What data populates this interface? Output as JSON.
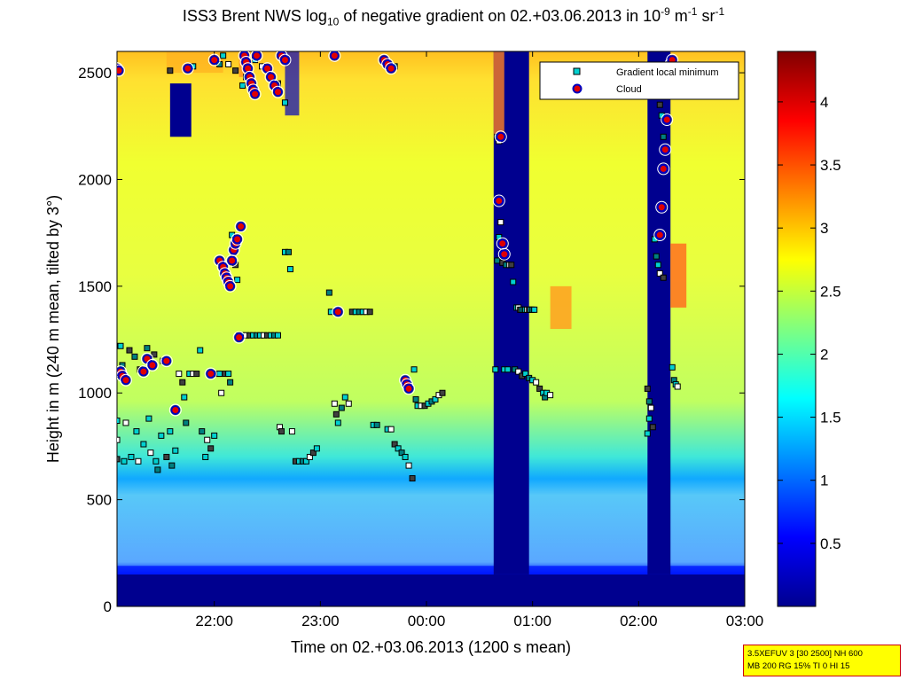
{
  "title": {
    "pre": "ISS3 Brent NWS log",
    "sub": "10",
    "mid": " of negative gradient on 02.+03.06.2013 in 10",
    "sup1": "-9",
    "mid2": " m",
    "sup2": "-1",
    "mid3": " sr",
    "sup3": "-1"
  },
  "info_box": {
    "line1": "3.5XEFUV 3 [30 2500] NH 600",
    "line2": "MB 200 RG 15% TI 0 HI 15"
  },
  "colors": {
    "minimum_marker_fill": "#00d0d0",
    "cloud_marker_fill": "#e00000",
    "cloud_marker_edge": "#0000c0"
  },
  "chart_data": {
    "type": "heatmap",
    "colormap": "jet",
    "xlabel": "Time on 02.+03.06.2013 (1200 s mean)",
    "ylabel": "Height in m (240 m mean, tilted by 3°)",
    "xlim": [
      "21:05",
      "03:00"
    ],
    "ylim": [
      0,
      2600
    ],
    "clim": [
      0,
      4.4
    ],
    "x_ticks": [
      "22:00",
      "23:00",
      "00:00",
      "01:00",
      "02:00",
      "03:00"
    ],
    "y_ticks": [
      0,
      500,
      1000,
      1500,
      2000,
      2500
    ],
    "colorbar_ticks": [
      0.5,
      1,
      1.5,
      2,
      2.5,
      3,
      3.5,
      4
    ],
    "legend": {
      "placement": "top-right",
      "entries": [
        "Gradient local minimum",
        "Cloud"
      ]
    },
    "field_description_values": {
      "surface_layer_0_150m": 0.2,
      "layer_150_600m": 1.6,
      "mid_layer_600_1500m": 2.4,
      "upper_layer": 2.5,
      "dropout_bands": [
        {
          "from": "00:38",
          "to": "00:58",
          "value": 0.1
        },
        {
          "from": "02:05",
          "to": "02:18",
          "value": 0.1
        }
      ]
    },
    "series": [
      {
        "name": "Gradient local minimum",
        "points": [
          [
            "21:05",
            870
          ],
          [
            "21:05",
            780
          ],
          [
            "21:05",
            690
          ],
          [
            "21:07",
            1220
          ],
          [
            "21:08",
            1130
          ],
          [
            "21:09",
            680
          ],
          [
            "21:10",
            860
          ],
          [
            "21:12",
            1200
          ],
          [
            "21:13",
            700
          ],
          [
            "21:15",
            1170
          ],
          [
            "21:16",
            820
          ],
          [
            "21:17",
            680
          ],
          [
            "21:18",
            1110
          ],
          [
            "21:20",
            760
          ],
          [
            "21:22",
            1210
          ],
          [
            "21:23",
            880
          ],
          [
            "21:24",
            720
          ],
          [
            "21:26",
            1180
          ],
          [
            "21:27",
            680
          ],
          [
            "21:28",
            640
          ],
          [
            "21:30",
            800
          ],
          [
            "21:31",
            1150
          ],
          [
            "21:33",
            700
          ],
          [
            "21:35",
            820
          ],
          [
            "21:36",
            660
          ],
          [
            "21:38",
            730
          ],
          [
            "21:40",
            1090
          ],
          [
            "21:42",
            1050
          ],
          [
            "21:43",
            980
          ],
          [
            "21:44",
            860
          ],
          [
            "21:46",
            1090
          ],
          [
            "21:48",
            1090
          ],
          [
            "21:50",
            1090
          ],
          [
            "21:52",
            1200
          ],
          [
            "21:53",
            820
          ],
          [
            "21:55",
            700
          ],
          [
            "21:56",
            780
          ],
          [
            "21:58",
            740
          ],
          [
            "22:00",
            800
          ],
          [
            "22:02",
            1090
          ],
          [
            "22:03",
            1090
          ],
          [
            "22:04",
            1000
          ],
          [
            "22:06",
            1090
          ],
          [
            "22:08",
            1090
          ],
          [
            "22:09",
            1050
          ],
          [
            "22:10",
            1740
          ],
          [
            "22:11",
            1660
          ],
          [
            "22:12",
            1600
          ],
          [
            "22:13",
            1530
          ],
          [
            "22:14",
            1270
          ],
          [
            "22:16",
            1270
          ],
          [
            "22:18",
            1270
          ],
          [
            "22:20",
            1270
          ],
          [
            "22:22",
            1270
          ],
          [
            "22:24",
            1270
          ],
          [
            "22:26",
            1270
          ],
          [
            "22:28",
            1270
          ],
          [
            "22:30",
            1270
          ],
          [
            "22:32",
            1270
          ],
          [
            "22:34",
            1270
          ],
          [
            "22:36",
            1270
          ],
          [
            "22:37",
            840
          ],
          [
            "22:38",
            820
          ],
          [
            "22:40",
            1660
          ],
          [
            "22:42",
            1660
          ],
          [
            "22:43",
            1580
          ],
          [
            "22:44",
            820
          ],
          [
            "22:46",
            680
          ],
          [
            "22:48",
            680
          ],
          [
            "22:50",
            680
          ],
          [
            "22:52",
            680
          ],
          [
            "22:54",
            700
          ],
          [
            "22:56",
            720
          ],
          [
            "22:58",
            740
          ],
          [
            "23:05",
            1470
          ],
          [
            "23:06",
            1380
          ],
          [
            "23:08",
            950
          ],
          [
            "23:09",
            900
          ],
          [
            "23:10",
            860
          ],
          [
            "23:12",
            930
          ],
          [
            "23:14",
            980
          ],
          [
            "23:16",
            950
          ],
          [
            "23:18",
            1380
          ],
          [
            "23:20",
            1380
          ],
          [
            "23:22",
            1380
          ],
          [
            "23:24",
            1380
          ],
          [
            "23:26",
            1380
          ],
          [
            "23:28",
            1380
          ],
          [
            "23:30",
            850
          ],
          [
            "23:32",
            850
          ],
          [
            "23:38",
            830
          ],
          [
            "23:40",
            830
          ],
          [
            "23:42",
            760
          ],
          [
            "23:44",
            740
          ],
          [
            "23:46",
            720
          ],
          [
            "23:48",
            700
          ],
          [
            "23:50",
            660
          ],
          [
            "23:52",
            600
          ],
          [
            "23:53",
            1110
          ],
          [
            "23:54",
            970
          ],
          [
            "23:55",
            940
          ],
          [
            "23:57",
            940
          ],
          [
            "23:59",
            940
          ],
          [
            "00:01",
            950
          ],
          [
            "00:03",
            960
          ],
          [
            "00:05",
            970
          ],
          [
            "00:07",
            990
          ],
          [
            "00:09",
            1000
          ],
          [
            "00:39",
            1110
          ],
          [
            "00:40",
            1620
          ],
          [
            "00:41",
            1730
          ],
          [
            "00:42",
            1800
          ],
          [
            "00:43",
            1610
          ],
          [
            "00:44",
            1110
          ],
          [
            "00:45",
            1600
          ],
          [
            "00:46",
            1110
          ],
          [
            "00:47",
            1600
          ],
          [
            "00:48",
            1600
          ],
          [
            "00:49",
            1520
          ],
          [
            "00:50",
            1110
          ],
          [
            "00:51",
            1400
          ],
          [
            "00:52",
            1400
          ],
          [
            "00:53",
            1390
          ],
          [
            "00:54",
            1390
          ],
          [
            "00:55",
            1390
          ],
          [
            "00:56",
            1390
          ],
          [
            "00:57",
            1390
          ],
          [
            "00:58",
            1390
          ],
          [
            "00:59",
            1390
          ],
          [
            "01:00",
            1390
          ],
          [
            "01:01",
            1390
          ],
          [
            "00:52",
            1100
          ],
          [
            "00:54",
            1080
          ],
          [
            "00:56",
            1090
          ],
          [
            "00:58",
            1070
          ],
          [
            "01:00",
            1060
          ],
          [
            "01:02",
            1050
          ],
          [
            "01:04",
            1020
          ],
          [
            "01:06",
            1000
          ],
          [
            "01:07",
            980
          ],
          [
            "01:08",
            1000
          ],
          [
            "01:10",
            990
          ],
          [
            "02:05",
            1020
          ],
          [
            "02:05",
            810
          ],
          [
            "02:06",
            960
          ],
          [
            "02:06",
            880
          ],
          [
            "02:07",
            930
          ],
          [
            "02:08",
            840
          ],
          [
            "02:09",
            1720
          ],
          [
            "02:10",
            1640
          ],
          [
            "02:11",
            1600
          ],
          [
            "02:12",
            1560
          ],
          [
            "02:14",
            1540
          ],
          [
            "02:19",
            1120
          ],
          [
            "02:20",
            1060
          ],
          [
            "02:21",
            1040
          ],
          [
            "02:22",
            1030
          ],
          [
            "21:35",
            2510
          ],
          [
            "21:48",
            2530
          ],
          [
            "22:03",
            2540
          ],
          [
            "22:05",
            2580
          ],
          [
            "22:08",
            2540
          ],
          [
            "22:12",
            2510
          ],
          [
            "22:16",
            2440
          ],
          [
            "22:18",
            2480
          ],
          [
            "22:23",
            2560
          ],
          [
            "22:27",
            2530
          ],
          [
            "22:36",
            2450
          ],
          [
            "22:40",
            2360
          ],
          [
            "23:42",
            2530
          ],
          [
            "00:40",
            2200
          ],
          [
            "00:41",
            2180
          ],
          [
            "02:12",
            2350
          ],
          [
            "02:13",
            2300
          ],
          [
            "02:14",
            2200
          ]
        ]
      },
      {
        "name": "Cloud",
        "points": [
          [
            "21:05",
            2520
          ],
          [
            "21:06",
            2510
          ],
          [
            "21:07",
            1100
          ],
          [
            "21:08",
            1080
          ],
          [
            "21:10",
            1060
          ],
          [
            "21:20",
            1100
          ],
          [
            "21:22",
            1160
          ],
          [
            "21:25",
            1130
          ],
          [
            "21:33",
            1150
          ],
          [
            "21:38",
            920
          ],
          [
            "21:45",
            2520
          ],
          [
            "21:58",
            1090
          ],
          [
            "22:00",
            2560
          ],
          [
            "22:03",
            1620
          ],
          [
            "22:05",
            1590
          ],
          [
            "22:06",
            1560
          ],
          [
            "22:07",
            1540
          ],
          [
            "22:08",
            1520
          ],
          [
            "22:09",
            1500
          ],
          [
            "22:10",
            1620
          ],
          [
            "22:11",
            1670
          ],
          [
            "22:12",
            1700
          ],
          [
            "22:13",
            1720
          ],
          [
            "22:14",
            1260
          ],
          [
            "22:15",
            1780
          ],
          [
            "22:17",
            2580
          ],
          [
            "22:18",
            2550
          ],
          [
            "22:19",
            2520
          ],
          [
            "22:20",
            2480
          ],
          [
            "22:21",
            2450
          ],
          [
            "22:22",
            2420
          ],
          [
            "22:23",
            2400
          ],
          [
            "22:24",
            2580
          ],
          [
            "22:30",
            2520
          ],
          [
            "22:32",
            2480
          ],
          [
            "22:34",
            2440
          ],
          [
            "22:36",
            2410
          ],
          [
            "22:38",
            2580
          ],
          [
            "22:40",
            2560
          ],
          [
            "23:08",
            2580
          ],
          [
            "23:10",
            1380
          ],
          [
            "23:36",
            2560
          ],
          [
            "23:38",
            2540
          ],
          [
            "23:40",
            2520
          ],
          [
            "23:48",
            1060
          ],
          [
            "23:49",
            1040
          ],
          [
            "23:50",
            1020
          ],
          [
            "00:41",
            1900
          ],
          [
            "00:42",
            2200
          ],
          [
            "00:43",
            1700
          ],
          [
            "00:44",
            1650
          ],
          [
            "02:12",
            1740
          ],
          [
            "02:13",
            1870
          ],
          [
            "02:14",
            2050
          ],
          [
            "02:15",
            2140
          ],
          [
            "02:16",
            2280
          ],
          [
            "02:17",
            2480
          ],
          [
            "02:18",
            2540
          ],
          [
            "02:19",
            2560
          ]
        ]
      }
    ]
  }
}
